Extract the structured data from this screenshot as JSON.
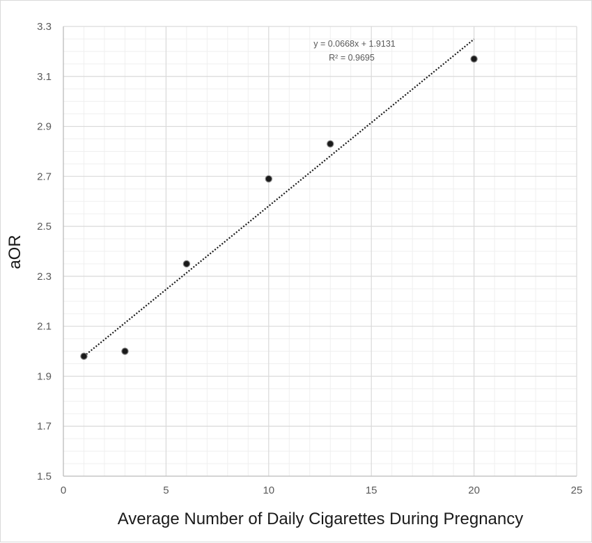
{
  "chart_data": {
    "type": "scatter",
    "xlabel": "Average Number of Daily Cigarettes During Pregnancy",
    "ylabel": "aOR",
    "xlim": [
      0,
      25
    ],
    "ylim": [
      1.5,
      3.3
    ],
    "x_ticks": [
      "0",
      "5",
      "10",
      "15",
      "20",
      "25"
    ],
    "y_ticks": [
      "1.5",
      "1.7",
      "1.9",
      "2.1",
      "2.3",
      "2.5",
      "2.7",
      "2.9",
      "3.1",
      "3.3"
    ],
    "x_tick_values": [
      0,
      5,
      10,
      15,
      20,
      25
    ],
    "y_tick_values": [
      1.5,
      1.7,
      1.9,
      2.1,
      2.3,
      2.5,
      2.7,
      2.9,
      3.1,
      3.3
    ],
    "series": [
      {
        "x": [
          1,
          3,
          6,
          10,
          13,
          20
        ],
        "y": [
          1.98,
          2.0,
          2.35,
          2.69,
          2.83,
          3.17
        ],
        "color": "#1a1a1a"
      }
    ],
    "trendline": {
      "type": "linear",
      "slope": 0.0668,
      "intercept": 1.9131,
      "x_range": [
        1,
        20
      ],
      "style": "dotted",
      "equation_label": "y = 0.0668x + 1.9131",
      "r2_label": "R² = 0.9695"
    },
    "grid": {
      "major": true,
      "minor": true,
      "major_color": "#d9d9d9",
      "minor_color": "#efefef"
    },
    "legend": "none"
  }
}
